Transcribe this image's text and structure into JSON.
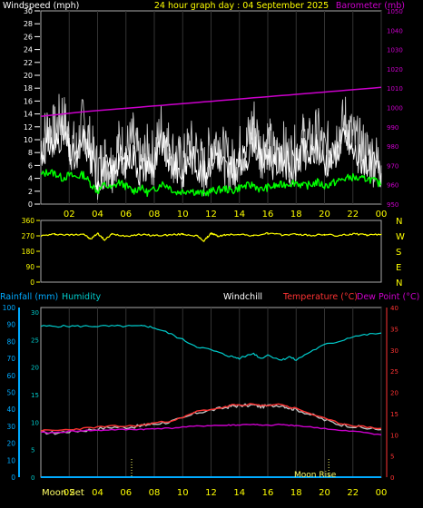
{
  "header": {
    "left": "Windspeed (mph)",
    "center": "24 hour graph day : 04 September 2025",
    "right": "Barometer (mb)"
  },
  "panel2": {
    "compass": [
      "N",
      "W",
      "S",
      "E",
      "N"
    ]
  },
  "panel3": {
    "rainfall_label": "Rainfall (mm)",
    "humidity_label": "Humidity",
    "windchill_label": "Windchill",
    "temperature_label": "Temperature (°C)",
    "dewpoint_label": "Dew Point (°C)",
    "moonset_label": "Moon Set",
    "moonrise_label": "Moon Rise"
  },
  "colors": {
    "windspeed": "#ffffff",
    "gust": "#cccccc",
    "average_wind": "#00ff00",
    "barometer": "#cc00cc",
    "direction": "#ffff00",
    "humidity": "#00cccc",
    "temperature": "#ff3333",
    "dewpoint": "#cc00cc",
    "windchill": "#c0c0c0",
    "rain": "#00aaff",
    "axis_left_top": "#ffffff",
    "axis_right_top": "#cc00cc",
    "axis_left_bottom": "#00aaff",
    "axis_left_bottom2": "#00cccc",
    "axis_right_bottom": "#ff3333",
    "moon_markers": "#ffff66"
  },
  "chart_data": [
    {
      "type": "line",
      "name": "wind-barometer",
      "x_ticks": [
        "02",
        "04",
        "06",
        "08",
        "10",
        "12",
        "14",
        "16",
        "18",
        "20",
        "22",
        "00"
      ],
      "xlim": [
        0,
        24
      ],
      "ylim": [
        0,
        30
      ],
      "y_ticks": [
        "0",
        "2",
        "4",
        "6",
        "8",
        "10",
        "12",
        "14",
        "16",
        "18",
        "20",
        "22",
        "24",
        "26",
        "28",
        "30"
      ],
      "y2lim": [
        950,
        1050
      ],
      "y2_ticks": [
        "950",
        "960",
        "970",
        "980",
        "990",
        "1000",
        "1010",
        "1020",
        "1030",
        "1040",
        "1050"
      ],
      "x": [
        0,
        0.5,
        1,
        1.5,
        2,
        2.5,
        3,
        3.5,
        4,
        4.5,
        5,
        5.5,
        6,
        6.5,
        7,
        7.5,
        8,
        8.5,
        9,
        9.5,
        10,
        10.5,
        11,
        11.5,
        12,
        12.5,
        13,
        13.5,
        14,
        14.5,
        15,
        15.5,
        16,
        16.5,
        17,
        17.5,
        18,
        18.5,
        19,
        19.5,
        20,
        20.5,
        21,
        21.5,
        22,
        22.5,
        23,
        23.5,
        24
      ],
      "series": [
        {
          "key": "wind",
          "values": [
            9,
            12,
            11,
            14,
            10,
            8,
            13,
            9,
            5,
            7,
            6,
            9,
            8,
            10,
            6,
            8,
            7,
            12,
            9,
            7,
            6,
            9,
            8,
            5,
            9,
            10,
            7,
            6,
            8,
            9,
            13,
            8,
            10,
            7,
            9,
            7,
            8,
            10,
            9,
            11,
            8,
            9,
            11,
            13,
            10,
            9,
            8,
            7,
            6
          ]
        },
        {
          "key": "avg",
          "values": [
            4.5,
            5,
            4.8,
            4,
            4.5,
            4.2,
            4.6,
            3.2,
            2,
            3,
            2.4,
            3.4,
            2.8,
            2,
            2.6,
            1.8,
            2.2,
            3.2,
            2.8,
            1.8,
            2,
            2.2,
            1.8,
            1.6,
            2,
            2.2,
            2.4,
            2,
            2.6,
            2.8,
            3,
            2.2,
            2.6,
            2.8,
            3,
            3.2,
            3.4,
            2.8,
            3,
            3.4,
            2.8,
            3.2,
            3.6,
            4,
            4.2,
            3.8,
            4,
            3.6,
            3
          ]
        },
        {
          "key": "baro",
          "axis": "right",
          "values": [
            995.4,
            995.8,
            996.2,
            996.6,
            997,
            997.4,
            997.8,
            998.1,
            998.4,
            998.7,
            999,
            999.3,
            999.6,
            999.9,
            1000.2,
            1000.5,
            1000.8,
            1001.1,
            1001.4,
            1001.7,
            1002,
            1002.3,
            1002.6,
            1002.9,
            1003.2,
            1003.5,
            1003.8,
            1004.1,
            1004.4,
            1004.7,
            1005,
            1005.3,
            1005.6,
            1005.9,
            1006.2,
            1006.5,
            1006.8,
            1007.1,
            1007.4,
            1007.7,
            1008,
            1008.3,
            1008.6,
            1008.9,
            1009.2,
            1009.5,
            1009.8,
            1010.1,
            1010.4
          ]
        }
      ]
    },
    {
      "type": "line",
      "name": "wind-direction",
      "xlim": [
        0,
        24
      ],
      "ylim": [
        0,
        360
      ],
      "y_ticks": [
        "0",
        "90",
        "180",
        "270",
        "360"
      ],
      "x": [
        0,
        1,
        2,
        3,
        3.5,
        4,
        4.5,
        5,
        6,
        7,
        8,
        9,
        10,
        11,
        11.5,
        12,
        12.5,
        13,
        14,
        15,
        16,
        17,
        18,
        19,
        20,
        21,
        22,
        23,
        24
      ],
      "series": [
        {
          "key": "dir",
          "values": [
            270,
            280,
            275,
            282,
            250,
            285,
            245,
            280,
            270,
            278,
            272,
            275,
            280,
            270,
            240,
            285,
            268,
            275,
            280,
            270,
            285,
            275,
            280,
            272,
            278,
            270,
            282,
            274,
            278
          ]
        }
      ]
    },
    {
      "type": "line",
      "name": "temperature-humidity",
      "xlim": [
        0,
        24
      ],
      "x_ticks": [
        "02",
        "04",
        "06",
        "08",
        "10",
        "12",
        "14",
        "16",
        "18",
        "20",
        "22",
        "00"
      ],
      "ylim": [
        0,
        100
      ],
      "y_ticks": [
        "0",
        "10",
        "20",
        "30",
        "40",
        "50",
        "60",
        "70",
        "80",
        "90",
        "100"
      ],
      "y_rain_ticks": [
        "0",
        "5",
        "10",
        "15",
        "20",
        "25",
        "30"
      ],
      "y2lim": [
        0,
        40
      ],
      "y2_ticks": [
        "0",
        "5",
        "10",
        "15",
        "20",
        "25",
        "30",
        "35",
        "40"
      ],
      "x": [
        0,
        1,
        2,
        3,
        4,
        5,
        6,
        7,
        7.5,
        8,
        9,
        10,
        11,
        12,
        13,
        13.5,
        14,
        15,
        15.5,
        16,
        17,
        17.5,
        18,
        19,
        20,
        21,
        22,
        23,
        24
      ],
      "series": [
        {
          "key": "hum",
          "values": [
            89,
            89,
            89,
            89,
            89,
            89,
            89,
            89,
            89,
            88,
            85,
            81,
            77,
            75,
            72,
            71,
            70,
            73,
            70,
            72,
            69,
            71,
            69,
            74,
            78,
            80,
            83,
            84,
            85
          ]
        },
        {
          "key": "temp",
          "axis": "right",
          "values": [
            11,
            11,
            11.2,
            11.5,
            11.8,
            12,
            12,
            12.2,
            12.5,
            12.8,
            13.2,
            14,
            15.5,
            16,
            16.5,
            17,
            17,
            17.2,
            16.8,
            17,
            17.2,
            16.5,
            16.2,
            15,
            13.8,
            12.8,
            12.2,
            11.8,
            11.5
          ]
        },
        {
          "key": "dew",
          "axis": "right",
          "values": [
            10.5,
            10.5,
            10.8,
            11,
            11,
            11.2,
            11.2,
            11.3,
            11.3,
            11.5,
            11.5,
            11.8,
            12,
            12.2,
            12.2,
            12.3,
            12.3,
            12.5,
            12.2,
            12.2,
            12.4,
            12.2,
            12.2,
            11.8,
            11.5,
            11,
            10.8,
            10.5,
            10
          ]
        },
        {
          "key": "chill",
          "axis": "right",
          "values": [
            10.6,
            10.4,
            10.8,
            11,
            11.4,
            11.8,
            11.8,
            12,
            12.4,
            12.6,
            13,
            13.8,
            15.2,
            15.8,
            16.4,
            16.8,
            16.8,
            17,
            16.6,
            16.8,
            17,
            16.3,
            16,
            14.8,
            13.5,
            12.5,
            12,
            11.5,
            11.2
          ]
        },
        {
          "key": "rain",
          "values": [
            0,
            0,
            0,
            0,
            0,
            0,
            0,
            0,
            0,
            0,
            0,
            0,
            0,
            0,
            0,
            0,
            0,
            0,
            0,
            0,
            0,
            0,
            0,
            0,
            0,
            0,
            0,
            0,
            0
          ]
        }
      ],
      "moon_set_hour": 6.4,
      "moon_rise_hour": 20.3
    }
  ]
}
